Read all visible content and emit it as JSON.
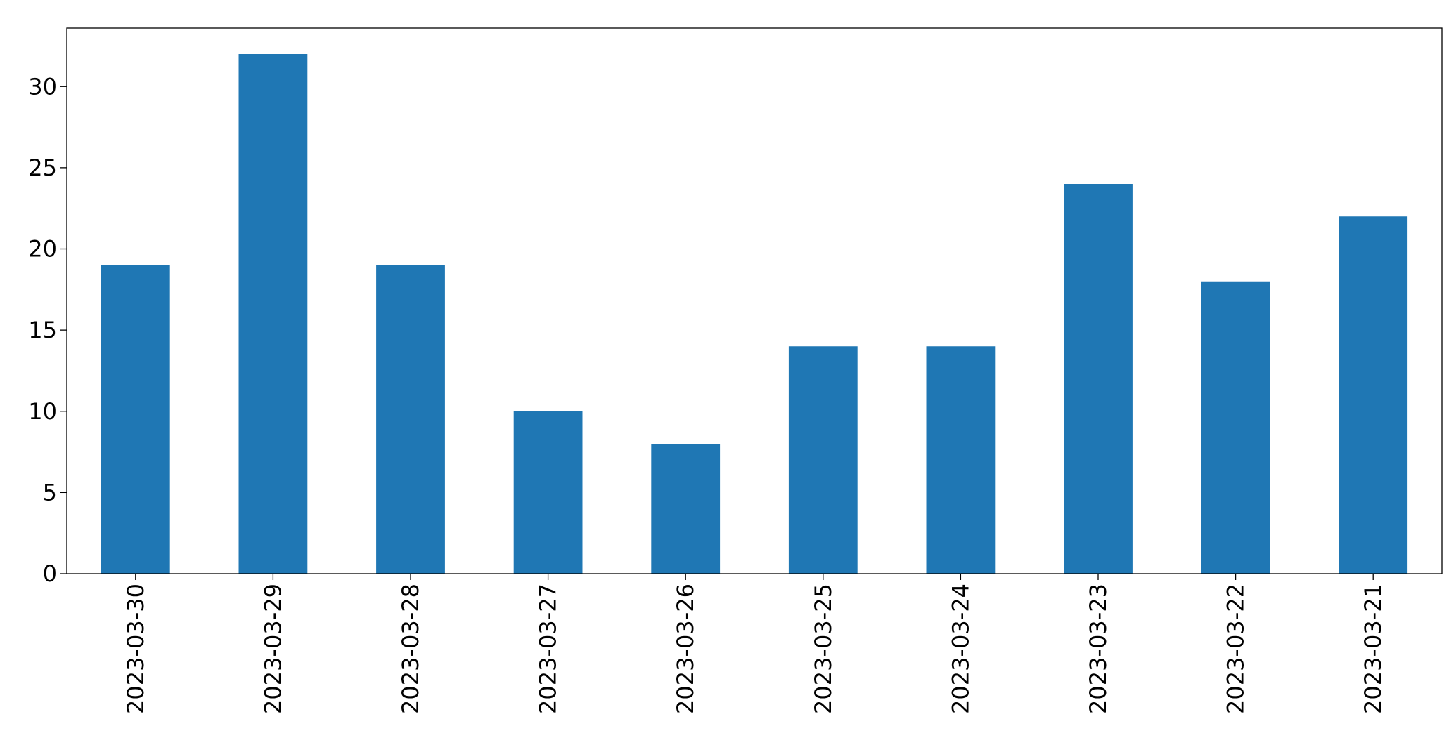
{
  "chart_data": {
    "type": "bar",
    "categories": [
      "2023-03-30",
      "2023-03-29",
      "2023-03-28",
      "2023-03-27",
      "2023-03-26",
      "2023-03-25",
      "2023-03-24",
      "2023-03-23",
      "2023-03-22",
      "2023-03-21"
    ],
    "values": [
      19,
      32,
      19,
      10,
      8,
      14,
      14,
      24,
      18,
      22
    ],
    "color": "#1f77b4",
    "ylim": [
      0,
      33.6
    ],
    "yticks": [
      0,
      5,
      10,
      15,
      20,
      25,
      30
    ],
    "grid": false
  }
}
